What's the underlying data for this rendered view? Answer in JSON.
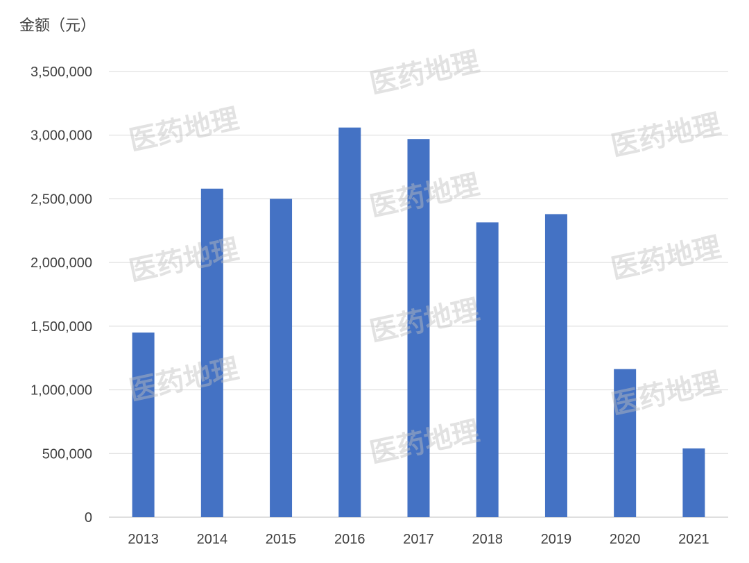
{
  "chart_data": {
    "type": "bar",
    "ylabel": "金额（元）",
    "categories": [
      "2013",
      "2014",
      "2015",
      "2016",
      "2017",
      "2018",
      "2019",
      "2020",
      "2021"
    ],
    "values": [
      1450000,
      2580000,
      2500000,
      3060000,
      2970000,
      2315000,
      2380000,
      1163000,
      540000
    ],
    "ylim": [
      0,
      3500000
    ],
    "yticks": [
      "0",
      "500,000",
      "1,000,000",
      "1,500,000",
      "2,000,000",
      "2,500,000",
      "3,000,000",
      "3,500,000"
    ],
    "bar_color": "#4472C4",
    "grid": true,
    "watermark": "医药地理"
  }
}
